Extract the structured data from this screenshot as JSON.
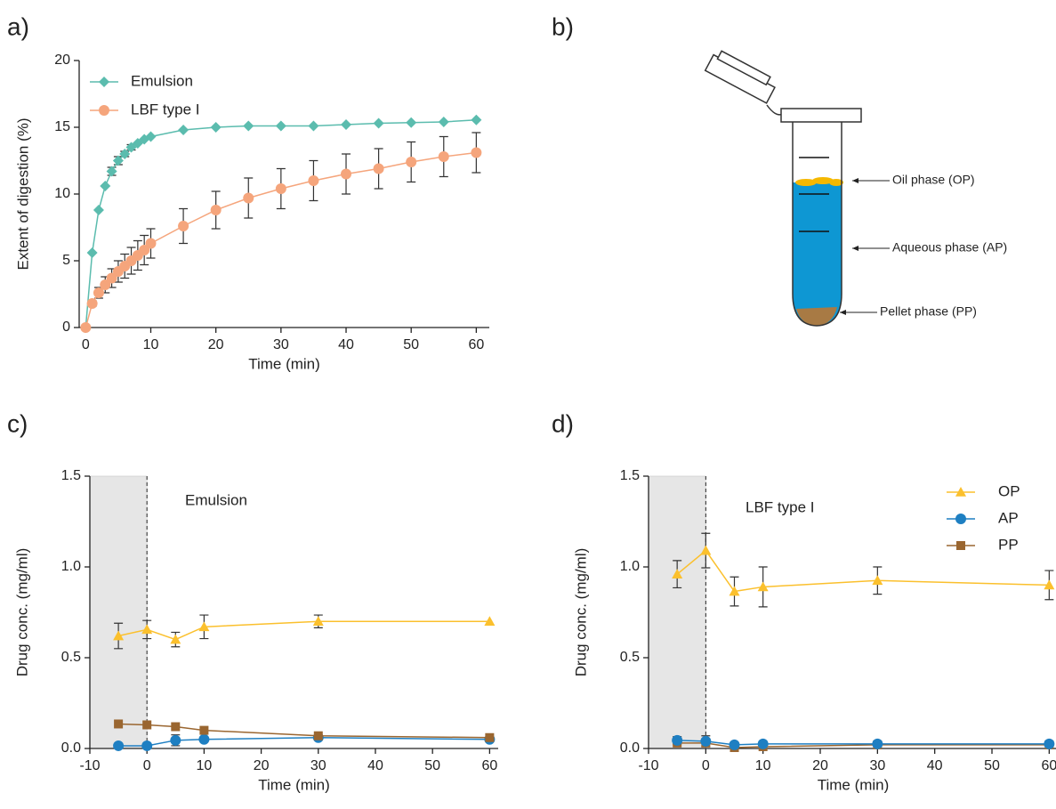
{
  "panel_labels": [
    "a)",
    "b)",
    "c)",
    "d)"
  ],
  "diagram": {
    "labels": [
      "Oil phase (OP)",
      "Aqueous phase (AP)",
      "Pellet phase (PP)"
    ]
  },
  "chart_data": [
    {
      "type": "line",
      "xlabel": "Time (min)",
      "ylabel": "Extent of digestion (%)",
      "x": [
        0,
        1,
        2,
        3,
        4,
        5,
        6,
        7,
        8,
        9,
        10,
        15,
        20,
        25,
        30,
        35,
        40,
        45,
        50,
        55,
        60
      ],
      "xlim": [
        -1,
        62
      ],
      "xticks": [
        0,
        10,
        20,
        30,
        40,
        50,
        60
      ],
      "ylim": [
        0,
        20
      ],
      "yticks": [
        0,
        5,
        10,
        15,
        20
      ],
      "legend": "upper left",
      "series": [
        {
          "name": "Emulsion",
          "color": "#5bbcae",
          "marker": "diamond",
          "values": [
            0,
            5.6,
            8.8,
            10.6,
            11.7,
            12.5,
            13.0,
            13.5,
            13.8,
            14.1,
            14.3,
            14.8,
            15.0,
            15.1,
            15.1,
            15.1,
            15.2,
            15.3,
            15.35,
            15.4,
            15.55
          ],
          "errors": [
            0,
            0,
            0,
            0,
            0.3,
            0.3,
            0.2,
            0.2,
            0,
            0,
            0,
            0,
            0,
            0,
            0,
            0,
            0,
            0,
            0,
            0,
            0
          ]
        },
        {
          "name": "LBF type I",
          "color": "#f5a57c",
          "marker": "circle",
          "values": [
            0,
            1.8,
            2.6,
            3.2,
            3.7,
            4.2,
            4.6,
            5.0,
            5.4,
            5.8,
            6.3,
            7.6,
            8.8,
            9.7,
            10.4,
            11.0,
            11.5,
            11.9,
            12.4,
            12.8,
            13.1
          ],
          "errors": [
            0,
            0.2,
            0.4,
            0.6,
            0.7,
            0.8,
            0.9,
            1.0,
            1.1,
            1.1,
            1.1,
            1.3,
            1.4,
            1.5,
            1.5,
            1.5,
            1.5,
            1.5,
            1.5,
            1.5,
            1.5
          ]
        }
      ]
    },
    {
      "type": "line",
      "xlabel": "Time (min)",
      "ylabel": "Drug conc. (mg/ml)",
      "annotation": "Emulsion",
      "x": [
        -5,
        0,
        5,
        10,
        30,
        60
      ],
      "xlim": [
        -10,
        61.5
      ],
      "xticks": [
        -10,
        0,
        10,
        20,
        30,
        40,
        50,
        60
      ],
      "ylim": [
        0,
        1.5
      ],
      "yticks": [
        {
          "value": 0,
          "label": "0.0"
        },
        0.5,
        {
          "value": 1,
          "label": "1.0"
        },
        1.5
      ],
      "shade": [
        -10,
        0
      ],
      "vline": 0,
      "series": [
        {
          "color": "#fbc02d",
          "marker": "triangle",
          "values": [
            0.62,
            0.655,
            0.6,
            0.67,
            0.7,
            0.7
          ],
          "errors": [
            0.07,
            0.05,
            0.04,
            0.065,
            0.035,
            0
          ]
        },
        {
          "color": "#1e7fc2",
          "marker": "circle",
          "values": [
            0.015,
            0.015,
            0.045,
            0.05,
            0.06,
            0.05
          ],
          "errors": [
            0,
            0,
            0.03,
            0.01,
            0.01,
            0
          ]
        },
        {
          "color": "#9a6630",
          "marker": "square",
          "values": [
            0.135,
            0.13,
            0.12,
            0.1,
            0.07,
            0.06
          ],
          "errors": [
            0,
            0,
            0,
            0,
            0,
            0
          ]
        }
      ]
    },
    {
      "type": "line",
      "xlabel": "Time (min)",
      "ylabel": "Drug conc. (mg/ml)",
      "annotation": "LBF type I",
      "x": [
        -5,
        0,
        5,
        10,
        30,
        60
      ],
      "xlim": [
        -10,
        61.5
      ],
      "xticks": [
        -10,
        0,
        10,
        20,
        30,
        40,
        50,
        60
      ],
      "ylim": [
        0,
        1.5
      ],
      "yticks": [
        {
          "value": 0,
          "label": "0.0"
        },
        0.5,
        {
          "value": 1,
          "label": "1.0"
        },
        1.5
      ],
      "shade": [
        -10,
        0
      ],
      "vline": 0,
      "legend": "upper right",
      "series": [
        {
          "name": "PP",
          "color": "#9a6630",
          "marker": "square",
          "values": [
            0.03,
            0.03,
            0.005,
            0.01,
            0.02,
            0.02
          ],
          "errors": [
            0,
            0,
            0,
            0,
            0,
            0
          ]
        },
        {
          "name": "OP",
          "color": "#fbc02d",
          "marker": "triangle",
          "values": [
            0.96,
            1.09,
            0.865,
            0.89,
            0.925,
            0.9
          ],
          "errors": [
            0.075,
            0.095,
            0.08,
            0.11,
            0.075,
            0.08
          ]
        },
        {
          "name": "AP",
          "color": "#1e7fc2",
          "marker": "circle",
          "values": [
            0.045,
            0.04,
            0.02,
            0.025,
            0.025,
            0.025
          ],
          "errors": [
            0.02,
            0.03,
            0,
            0,
            0,
            0
          ]
        }
      ]
    }
  ]
}
